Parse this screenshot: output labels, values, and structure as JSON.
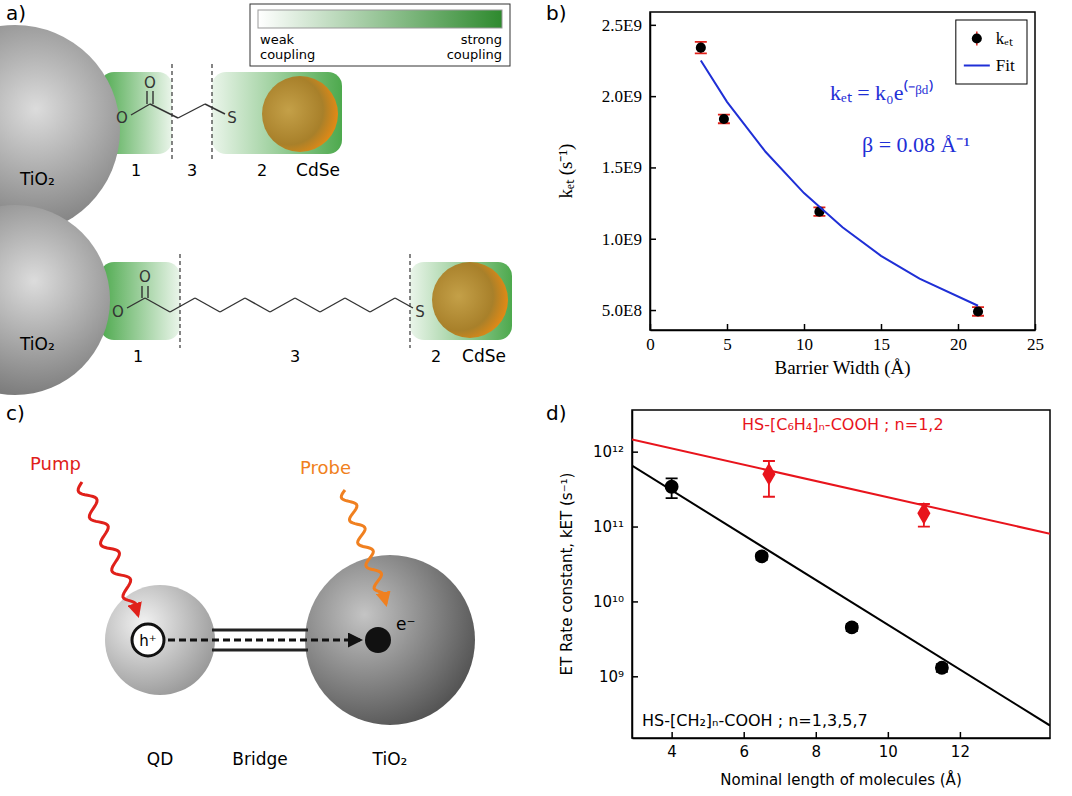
{
  "panel_labels": [
    "a)",
    "b)",
    "c)",
    "d)"
  ],
  "diagram_a": {
    "legend": {
      "low": "weak coupling",
      "high": "strong coupling"
    },
    "rows": [
      {
        "left": "TiO₂",
        "right": "CdSe",
        "atoms": [
          "O",
          "O",
          "S"
        ],
        "regions": [
          "1",
          "3",
          "2"
        ]
      },
      {
        "left": "TiO₂",
        "right": "CdSe",
        "atoms": [
          "O",
          "O",
          "S"
        ],
        "regions": [
          "1",
          "3",
          "2"
        ]
      }
    ]
  },
  "chart_data": [
    {
      "type": "scatter",
      "xlabel": "Barrier Width (Å)",
      "ylabel": "kₑₜ (s⁻¹)",
      "xlim": [
        0,
        25
      ],
      "xticks": [
        0,
        5,
        10,
        15,
        20,
        25
      ],
      "ylim": [
        360000000,
        2590000000
      ],
      "yticks": [
        {
          "value": 500000000,
          "label": "5.0E8"
        },
        {
          "value": 1000000000,
          "label": "1.0E9"
        },
        {
          "value": 1500000000,
          "label": "1.5E9"
        },
        {
          "value": 2000000000,
          "label": "2.0E9"
        },
        {
          "value": 2500000000,
          "label": "2.5E9"
        }
      ],
      "legend": "upper right",
      "annotations": [
        "kₑₜ = k₀e⁽⁻ᵝᵈ⁾",
        "β = 0.08 Å⁻¹"
      ],
      "series": [
        {
          "name": "kₑₜ",
          "type": "scatter",
          "marker": "circle",
          "color": "#000000",
          "x": [
            3.3,
            4.8,
            11.0,
            21.3
          ],
          "values": [
            2340000000,
            1840000000,
            1190000000,
            490000000
          ],
          "errors": [
            40000000,
            30000000,
            30000000,
            30000000
          ]
        },
        {
          "name": "Fit",
          "type": "line",
          "color": "#1f2fd6",
          "x": [
            3.3,
            5,
            7.5,
            10,
            12.5,
            15,
            17.5,
            21.3
          ],
          "values": [
            2250000000,
            1960000000,
            1610000000,
            1320000000,
            1080000000,
            880000000,
            720000000,
            530000000
          ]
        }
      ]
    },
    {
      "type": "scatter",
      "log": "y",
      "xlabel": "Nominal length of molecules (Å)",
      "ylabel": "ET Rate constant, kET (s⁻¹)",
      "xlim": [
        2.9,
        14.5
      ],
      "xticks": [
        4,
        6,
        8,
        10,
        12
      ],
      "ylim": [
        150000000,
        3600000000000
      ],
      "yticks": [
        {
          "value": 1000000000,
          "label": "10⁹"
        },
        {
          "value": 10000000000,
          "label": "10¹⁰"
        },
        {
          "value": 100000000000,
          "label": "10¹¹"
        },
        {
          "value": 1000000000000,
          "label": "10¹²"
        }
      ],
      "series": [
        {
          "name": "HS-[C₆H₄]ₙ-COOH ; n=1,2",
          "color": "#e8141c",
          "marker": "diamond",
          "x": [
            6.7,
            11.0
          ],
          "values": [
            500000000000,
            150000000000
          ],
          "errors": [
            250000000000,
            50000000000
          ],
          "fit": {
            "x": [
              2.9,
              14.5
            ],
            "values": [
              1450000000000,
              80000000000
            ]
          }
        },
        {
          "name": "HS-[CH₂]ₙ-COOH ; n=1,3,5,7",
          "color": "#000000",
          "marker": "circle",
          "x": [
            4,
            6.5,
            9,
            11.5
          ],
          "values": [
            340000000000,
            40000000000,
            4500000000,
            1300000000
          ],
          "errors": [
            100000000000,
            4000000000,
            500000000,
            150000000
          ],
          "fit": {
            "x": [
              2.9,
              14.5
            ],
            "values": [
              650000000000,
              220000000
            ]
          }
        }
      ]
    }
  ],
  "diagram_c": {
    "pump": "Pump",
    "probe": "Probe",
    "hole": "h⁺",
    "electron": "e⁻",
    "donor": "QD",
    "bridge": "Bridge",
    "acceptor": "TiO₂"
  }
}
